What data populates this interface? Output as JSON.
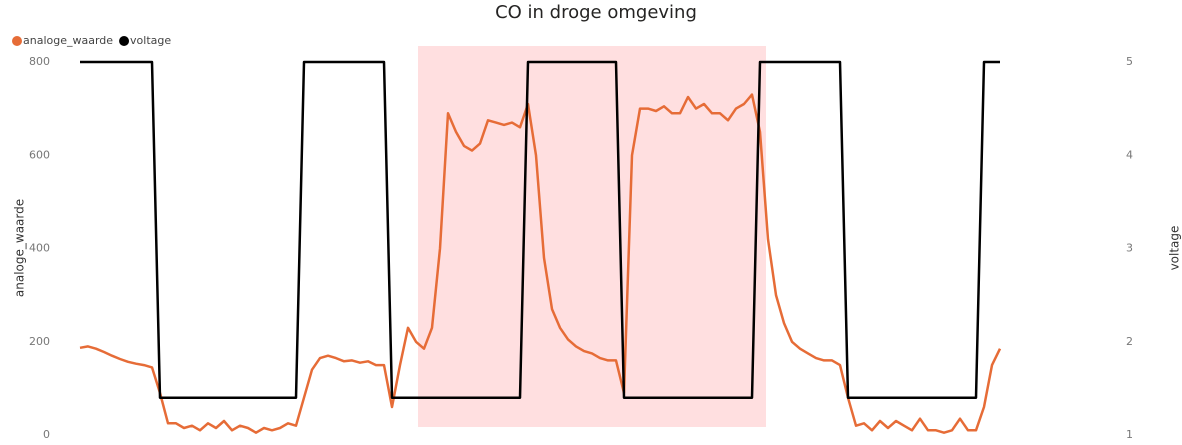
{
  "chart_data": {
    "type": "line",
    "title": "CO in droge omgeving",
    "y_label": "analoge_waarde",
    "y2_label": "voltage",
    "ylim": [
      0,
      800
    ],
    "yticks": [
      0,
      200,
      400,
      600,
      800
    ],
    "y2lim": [
      1,
      5
    ],
    "y2ticks": [
      1,
      2,
      3,
      4,
      5
    ],
    "grid": false,
    "legend": "top-left",
    "series": [
      {
        "name": "analoge_waarde",
        "color": "#e66c37",
        "values": [
          187,
          190,
          185,
          178,
          170,
          163,
          157,
          153,
          150,
          145,
          90,
          25,
          25,
          15,
          20,
          10,
          25,
          15,
          30,
          10,
          20,
          15,
          5,
          15,
          10,
          15,
          25,
          20,
          80,
          140,
          165,
          170,
          165,
          158,
          160,
          155,
          158,
          150,
          150,
          60,
          150,
          230,
          200,
          185,
          230,
          400,
          690,
          650,
          620,
          610,
          625,
          675,
          670,
          665,
          670,
          660,
          710,
          600,
          380,
          270,
          230,
          205,
          190,
          180,
          175,
          165,
          160,
          160,
          90,
          600,
          700,
          700,
          695,
          705,
          690,
          690,
          725,
          700,
          710,
          690,
          690,
          675,
          700,
          710,
          730,
          650,
          420,
          300,
          240,
          200,
          185,
          175,
          165,
          160,
          160,
          150,
          80,
          20,
          25,
          10,
          30,
          15,
          30,
          20,
          10,
          35,
          10,
          10,
          5,
          10,
          35,
          10,
          10,
          60,
          150,
          185
        ]
      },
      {
        "name": "voltage",
        "color": "#000000",
        "axis": "y2",
        "values": [
          5,
          5,
          5,
          5,
          5,
          5,
          5,
          5,
          5,
          5,
          1.4,
          1.4,
          1.4,
          1.4,
          1.4,
          1.4,
          1.4,
          1.4,
          1.4,
          1.4,
          1.4,
          1.4,
          1.4,
          1.4,
          1.4,
          1.4,
          1.4,
          1.4,
          5,
          5,
          5,
          5,
          5,
          5,
          5,
          5,
          5,
          5,
          5,
          1.4,
          1.4,
          1.4,
          1.4,
          1.4,
          1.4,
          1.4,
          1.4,
          1.4,
          1.4,
          1.4,
          1.4,
          1.4,
          1.4,
          1.4,
          1.4,
          1.4,
          5,
          5,
          5,
          5,
          5,
          5,
          5,
          5,
          5,
          5,
          5,
          5,
          1.4,
          1.4,
          1.4,
          1.4,
          1.4,
          1.4,
          1.4,
          1.4,
          1.4,
          1.4,
          1.4,
          1.4,
          1.4,
          1.4,
          1.4,
          1.4,
          1.4,
          5,
          5,
          5,
          5,
          5,
          5,
          5,
          5,
          5,
          5,
          5,
          1.4,
          1.4,
          1.4,
          1.4,
          1.4,
          1.4,
          1.4,
          1.4,
          1.4,
          1.4,
          1.4,
          1.4,
          1.4,
          1.4,
          1.4,
          1.4,
          1.4,
          5,
          5,
          5
        ]
      }
    ]
  }
}
